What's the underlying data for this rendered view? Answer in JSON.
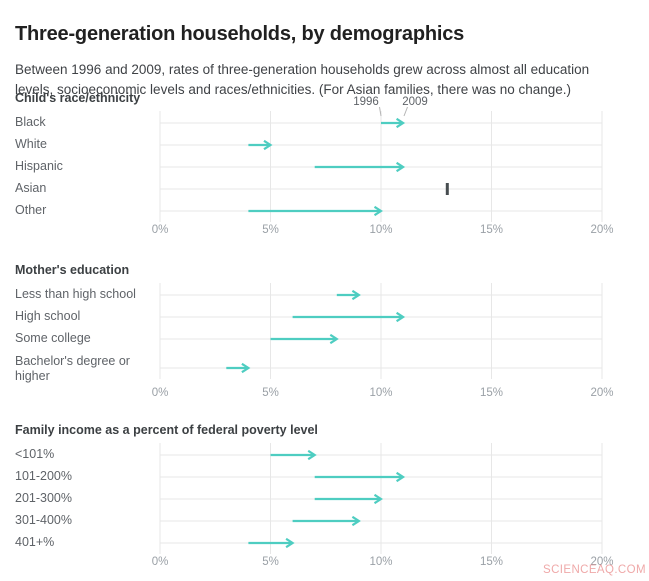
{
  "title": "Three-generation households, by demographics",
  "subtitle": "Between 1996 and 2009, rates of three-generation households grew across almost all education levels, socioeconomic levels and races/ethnicities. (For Asian families, there was no change.)",
  "watermark": "SCIENCEAQ.COM",
  "legend": {
    "start": "1996",
    "end": "2009"
  },
  "axis": {
    "min": 0,
    "max": 20,
    "tick_values": [
      0,
      5,
      10,
      15,
      20
    ],
    "tick_labels": [
      "0%",
      "5%",
      "10%",
      "15%",
      "20%"
    ]
  },
  "colors": {
    "arrow": "#4ecdc1",
    "no_change": "#474d50",
    "grid": "#e7e7e7",
    "axis_text": "#9aa0a6",
    "label_text": "#5f6368",
    "header_text": "#3c4043",
    "title_text": "#212121",
    "subtitle_text": "#3f4246",
    "legend_text": "#5f6368",
    "leader_line": "#b5b5b5",
    "watermark": "rgba(228,110,110,0.6)"
  },
  "chart_data": [
    {
      "type": "arrow",
      "title": "Child's race/ethnicity",
      "unit": "%",
      "xlim": [
        0,
        20
      ],
      "legend_years": [
        "1996",
        "2009"
      ],
      "rows": [
        {
          "label": "Black",
          "start": 10,
          "end": 11
        },
        {
          "label": "White",
          "start": 4,
          "end": 5
        },
        {
          "label": "Hispanic",
          "start": 7,
          "end": 11
        },
        {
          "label": "Asian",
          "start": 13,
          "end": 13,
          "no_change": true
        },
        {
          "label": "Other",
          "start": 4,
          "end": 10
        }
      ]
    },
    {
      "type": "arrow",
      "title": "Mother's education",
      "unit": "%",
      "xlim": [
        0,
        20
      ],
      "rows": [
        {
          "label": "Less than high school",
          "start": 8,
          "end": 9
        },
        {
          "label": "High school",
          "start": 6,
          "end": 11
        },
        {
          "label": "Some college",
          "start": 5,
          "end": 8
        },
        {
          "label": "Bachelor's degree or higher",
          "start": 3,
          "end": 4
        }
      ]
    },
    {
      "type": "arrow",
      "title": "Family income as a percent of federal poverty level",
      "unit": "%",
      "xlim": [
        0,
        20
      ],
      "rows": [
        {
          "label": "<101%",
          "start": 5,
          "end": 7
        },
        {
          "label": "101-200%",
          "start": 7,
          "end": 11
        },
        {
          "label": "201-300%",
          "start": 7,
          "end": 10
        },
        {
          "label": "301-400%",
          "start": 6,
          "end": 9
        },
        {
          "label": "401+%",
          "start": 4,
          "end": 6
        }
      ]
    }
  ]
}
